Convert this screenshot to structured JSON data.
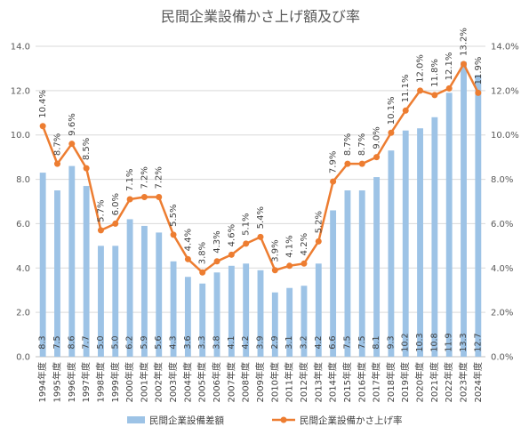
{
  "chart_data": {
    "type": "bar",
    "title": "民間企業設備かさ上げ額及び率",
    "categories": [
      "1994年度",
      "1995年度",
      "1996年度",
      "1997年度",
      "1998年度",
      "1999年度",
      "2000年度",
      "2001年度",
      "2002年度",
      "2003年度",
      "2004年度",
      "2005年度",
      "2006年度",
      "2007年度",
      "2008年度",
      "2009年度",
      "2010年度",
      "2011年度",
      "2012年度",
      "2013年度",
      "2014年度",
      "2015年度",
      "2016年度",
      "2017年度",
      "2018年度",
      "2019年度",
      "2020年度",
      "2021年度",
      "2022年度",
      "2023年度",
      "2024年度"
    ],
    "series": [
      {
        "name": "民間企業設備差額",
        "type": "bar",
        "axis": "left",
        "color": "#9dc3e6",
        "values": [
          8.3,
          7.5,
          8.6,
          7.7,
          5.0,
          5.0,
          6.2,
          5.9,
          5.6,
          4.3,
          3.6,
          3.3,
          3.8,
          4.1,
          4.2,
          3.9,
          2.9,
          3.1,
          3.2,
          4.2,
          6.6,
          7.5,
          7.5,
          8.1,
          9.3,
          10.2,
          10.3,
          10.8,
          11.9,
          13.3,
          12.7
        ],
        "labels": [
          "8.3",
          "7.5",
          "8.6",
          "7.7",
          "5.0",
          "5.0",
          "6.2",
          "5.9",
          "5.6",
          "4.3",
          "3.6",
          "3.3",
          "3.8",
          "4.1",
          "4.2",
          "3.9",
          "2.9",
          "3.1",
          "3.2",
          "4.2",
          "6.6",
          "7.5",
          "7.5",
          "8.1",
          "9.3",
          "10.2",
          "10.3",
          "10.8",
          "11.9",
          "13.3",
          "12.7"
        ]
      },
      {
        "name": "民間企業設備かさ上げ率",
        "type": "line",
        "axis": "right",
        "color": "#ed7d31",
        "values": [
          10.4,
          8.7,
          9.6,
          8.5,
          5.7,
          6.0,
          7.1,
          7.2,
          7.2,
          5.5,
          4.4,
          3.8,
          4.3,
          4.6,
          5.1,
          5.4,
          3.9,
          4.1,
          4.2,
          5.2,
          7.9,
          8.7,
          8.7,
          9.0,
          10.1,
          11.1,
          12.0,
          11.8,
          12.1,
          13.2,
          11.9
        ],
        "labels": [
          "10.4%",
          "8.7%",
          "9.6%",
          "8.5%",
          "5.7%",
          "6.0%",
          "7.1%",
          "7.2%",
          "7.2%",
          "5.5%",
          "4.4%",
          "3.8%",
          "4.3%",
          "4.6%",
          "5.1%",
          "5.4%",
          "3.9%",
          "4.1%",
          "4.2%",
          "5.2%",
          "7.9%",
          "8.7%",
          "8.7%",
          "9.0%",
          "10.1%",
          "11.1%",
          "12.0%",
          "11.8%",
          "12.1%",
          "13.2%",
          "11.9%"
        ]
      }
    ],
    "y_left": {
      "ylim": [
        0,
        14
      ],
      "ticks": [
        "0.0",
        "2.0",
        "4.0",
        "6.0",
        "8.0",
        "10.0",
        "12.0",
        "14.0"
      ]
    },
    "y_right": {
      "ylim": [
        0,
        14
      ],
      "ticks": [
        "0.0%",
        "2.0%",
        "4.0%",
        "6.0%",
        "8.0%",
        "10.0%",
        "12.0%",
        "14.0%"
      ]
    },
    "grid": true,
    "legend": "bottom"
  }
}
